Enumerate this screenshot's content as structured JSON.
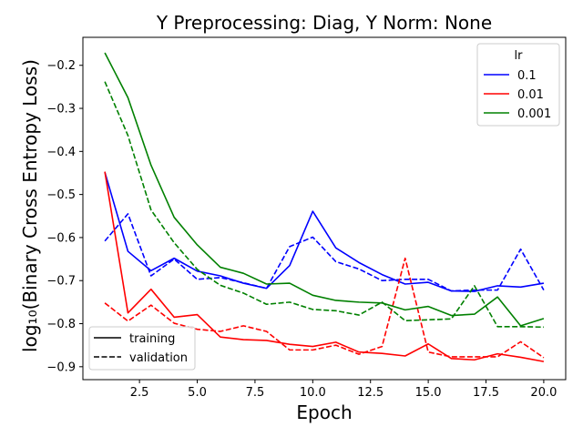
{
  "chart_data": {
    "type": "line",
    "title": "Y Preprocessing: Diag, Y Norm: None",
    "xlabel": "Epoch",
    "ylabel": "log₁₀(Binary Cross Entropy Loss)",
    "xlim": [
      0.05,
      20.95
    ],
    "ylim": [
      -0.93,
      -0.135
    ],
    "xticks": [
      2.5,
      5.0,
      7.5,
      10.0,
      12.5,
      15.0,
      17.5,
      20.0
    ],
    "xtick_labels": [
      "2.5",
      "5.0",
      "7.5",
      "10.0",
      "12.5",
      "15.0",
      "17.5",
      "20.0"
    ],
    "yticks": [
      -0.9,
      -0.8,
      -0.7,
      -0.6,
      -0.5,
      -0.4,
      -0.3,
      -0.2
    ],
    "ytick_labels": [
      "−0.9",
      "−0.8",
      "−0.7",
      "−0.6",
      "−0.5",
      "−0.4",
      "−0.3",
      "−0.2"
    ],
    "grid": false,
    "x": [
      1,
      2,
      3,
      4,
      5,
      6,
      7,
      8,
      9,
      10,
      11,
      12,
      13,
      14,
      15,
      16,
      17,
      18,
      19,
      20
    ],
    "series": [
      {
        "lr": "0.1",
        "split": "training",
        "color": "#0000ff",
        "dash": "solid",
        "values": [
          -0.448,
          -0.632,
          -0.677,
          -0.648,
          -0.678,
          -0.689,
          -0.706,
          -0.718,
          -0.665,
          -0.539,
          -0.624,
          -0.658,
          -0.686,
          -0.708,
          -0.704,
          -0.724,
          -0.725,
          -0.712,
          -0.715,
          -0.706
        ]
      },
      {
        "lr": "0.1",
        "split": "validation",
        "color": "#0000ff",
        "dash": "dashed",
        "values": [
          -0.608,
          -0.545,
          -0.689,
          -0.65,
          -0.697,
          -0.693,
          -0.705,
          -0.718,
          -0.621,
          -0.599,
          -0.656,
          -0.673,
          -0.7,
          -0.697,
          -0.697,
          -0.724,
          -0.722,
          -0.722,
          -0.627,
          -0.722
        ]
      },
      {
        "lr": "0.01",
        "split": "training",
        "color": "#ff0000",
        "dash": "solid",
        "values": [
          -0.447,
          -0.775,
          -0.72,
          -0.785,
          -0.779,
          -0.831,
          -0.837,
          -0.839,
          -0.848,
          -0.853,
          -0.843,
          -0.866,
          -0.869,
          -0.875,
          -0.847,
          -0.881,
          -0.884,
          -0.87,
          -0.878,
          -0.888
        ]
      },
      {
        "lr": "0.01",
        "split": "validation",
        "color": "#ff0000",
        "dash": "dashed",
        "values": [
          -0.752,
          -0.794,
          -0.757,
          -0.799,
          -0.813,
          -0.818,
          -0.805,
          -0.818,
          -0.861,
          -0.861,
          -0.85,
          -0.871,
          -0.853,
          -0.648,
          -0.866,
          -0.877,
          -0.877,
          -0.877,
          -0.842,
          -0.879
        ]
      },
      {
        "lr": "0.001",
        "split": "training",
        "color": "#008000",
        "dash": "solid",
        "values": [
          -0.171,
          -0.275,
          -0.432,
          -0.553,
          -0.617,
          -0.669,
          -0.683,
          -0.708,
          -0.706,
          -0.734,
          -0.746,
          -0.75,
          -0.752,
          -0.768,
          -0.76,
          -0.781,
          -0.778,
          -0.738,
          -0.805,
          -0.788
        ]
      },
      {
        "lr": "0.001",
        "split": "validation",
        "color": "#008000",
        "dash": "dashed",
        "values": [
          -0.238,
          -0.363,
          -0.536,
          -0.612,
          -0.674,
          -0.711,
          -0.729,
          -0.755,
          -0.75,
          -0.767,
          -0.77,
          -0.78,
          -0.75,
          -0.793,
          -0.791,
          -0.789,
          -0.712,
          -0.807,
          -0.807,
          -0.808
        ]
      }
    ],
    "legend_lr": {
      "title": "lr",
      "position": "top-right",
      "entries": [
        {
          "label": "0.1",
          "color": "#0000ff"
        },
        {
          "label": "0.01",
          "color": "#ff0000"
        },
        {
          "label": "0.001",
          "color": "#008000"
        }
      ]
    },
    "legend_split": {
      "position": "bottom-left",
      "entries": [
        {
          "label": "training",
          "dash": "solid"
        },
        {
          "label": "validation",
          "dash": "dashed"
        }
      ]
    }
  }
}
